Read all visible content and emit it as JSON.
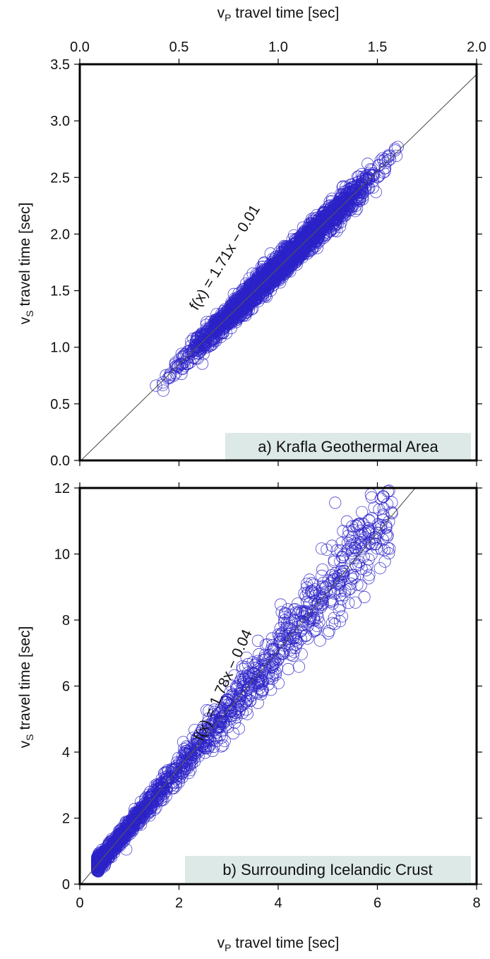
{
  "chart_data": [
    {
      "type": "scatter",
      "panel_label": "a) Krafla Geothermal Area",
      "xlabel": "v_P travel time [sec]",
      "ylabel": "v_S travel time [sec]",
      "xlim": [
        0.0,
        2.0
      ],
      "ylim": [
        0.0,
        3.5
      ],
      "x_ticks": [
        "0.0",
        "0.5",
        "1.0",
        "1.5",
        "2.0"
      ],
      "y_ticks": [
        "0.0",
        "0.5",
        "1.0",
        "1.5",
        "2.0",
        "2.5",
        "3.0",
        "3.5"
      ],
      "x_axis_position": "top",
      "fit": {
        "label": "f(x) = 1.71x − 0.01",
        "slope": 1.71,
        "intercept": -0.01
      },
      "x_range_data": [
        0.33,
        1.67
      ],
      "series": [
        {
          "marker": "open-circle",
          "color": "#2c22c8"
        }
      ]
    },
    {
      "type": "scatter",
      "panel_label": "b) Surrounding Icelandic Crust",
      "xlabel": "v_P travel time [sec]",
      "ylabel": "v_S travel time [sec]",
      "xlim": [
        0,
        8
      ],
      "ylim": [
        0,
        12
      ],
      "x_ticks": [
        "0",
        "2",
        "4",
        "6",
        "8"
      ],
      "y_ticks": [
        "0",
        "2",
        "4",
        "6",
        "8",
        "10",
        "12"
      ],
      "x_axis_position": "bottom",
      "fit": {
        "label": "f(x) = 1.78x − 0.04",
        "slope": 1.78,
        "intercept": -0.04
      },
      "x_range_data": [
        0.35,
        6.3
      ],
      "series": [
        {
          "marker": "open-circle",
          "color": "#2c22c8"
        }
      ]
    }
  ],
  "colors": {
    "points": "#2c22c8",
    "fit_line": "#555555",
    "label_box": "#dde9e7",
    "frame": "#000000"
  }
}
